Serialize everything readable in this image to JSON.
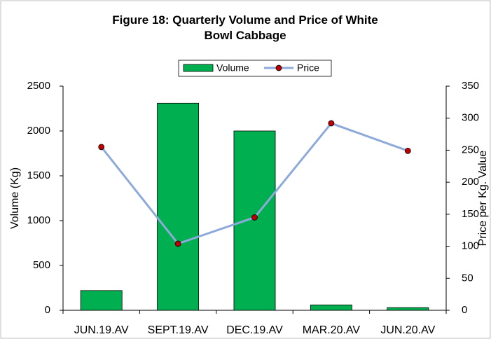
{
  "chart_data": {
    "type": "combo",
    "title": "Figure 18: Quarterly Volume and Price of White Bowl Cabbage",
    "categories": [
      "JUN.19.AV",
      "SEPT.19.AV",
      "DEC.19.AV",
      "MAR.20.AV",
      "JUN.20.AV"
    ],
    "y_label": "Volume (Kg)",
    "y2_label": "Price per Kg. Value",
    "ylim": [
      0,
      2500
    ],
    "yticks": [
      0,
      500,
      1000,
      1500,
      2000,
      2500
    ],
    "y2lim": [
      0,
      350
    ],
    "y2ticks": [
      0,
      50,
      100,
      150,
      200,
      250,
      300,
      350
    ],
    "series": [
      {
        "name": "Volume",
        "type": "bar",
        "color": "#00b050",
        "values": [
          220,
          2310,
          2000,
          60,
          30
        ]
      },
      {
        "name": "Price",
        "type": "line",
        "axis": "y2",
        "color": "#8eaadb",
        "marker_color": "#c00000",
        "values": [
          255,
          104,
          145,
          292,
          249
        ]
      }
    ]
  }
}
